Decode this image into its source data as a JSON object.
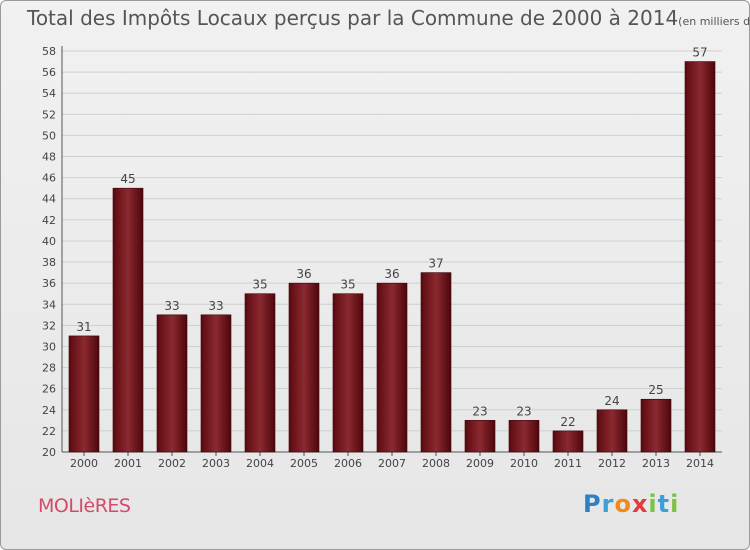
{
  "chart_data": {
    "type": "bar",
    "title": "Total des Impôts Locaux perçus par la Commune de 2000 à 2014",
    "unit_label": "(en milliers d'€)",
    "categories": [
      "2000",
      "2001",
      "2002",
      "2003",
      "2004",
      "2005",
      "2006",
      "2007",
      "2008",
      "2009",
      "2010",
      "2011",
      "2012",
      "2013",
      "2014"
    ],
    "values": [
      31,
      45,
      33,
      33,
      35,
      36,
      35,
      36,
      37,
      23,
      23,
      22,
      24,
      25,
      57
    ],
    "ylim": [
      20,
      58
    ],
    "yticks": [
      20,
      22,
      24,
      26,
      28,
      30,
      32,
      34,
      36,
      38,
      40,
      42,
      44,
      46,
      48,
      50,
      52,
      54,
      56,
      58
    ],
    "grid": true,
    "bar_color": "#7a1a1f"
  },
  "commune_name": "MOLIèRES",
  "logo": {
    "letters": [
      "P",
      "r",
      "o",
      "x",
      "i",
      "t",
      "i"
    ]
  }
}
